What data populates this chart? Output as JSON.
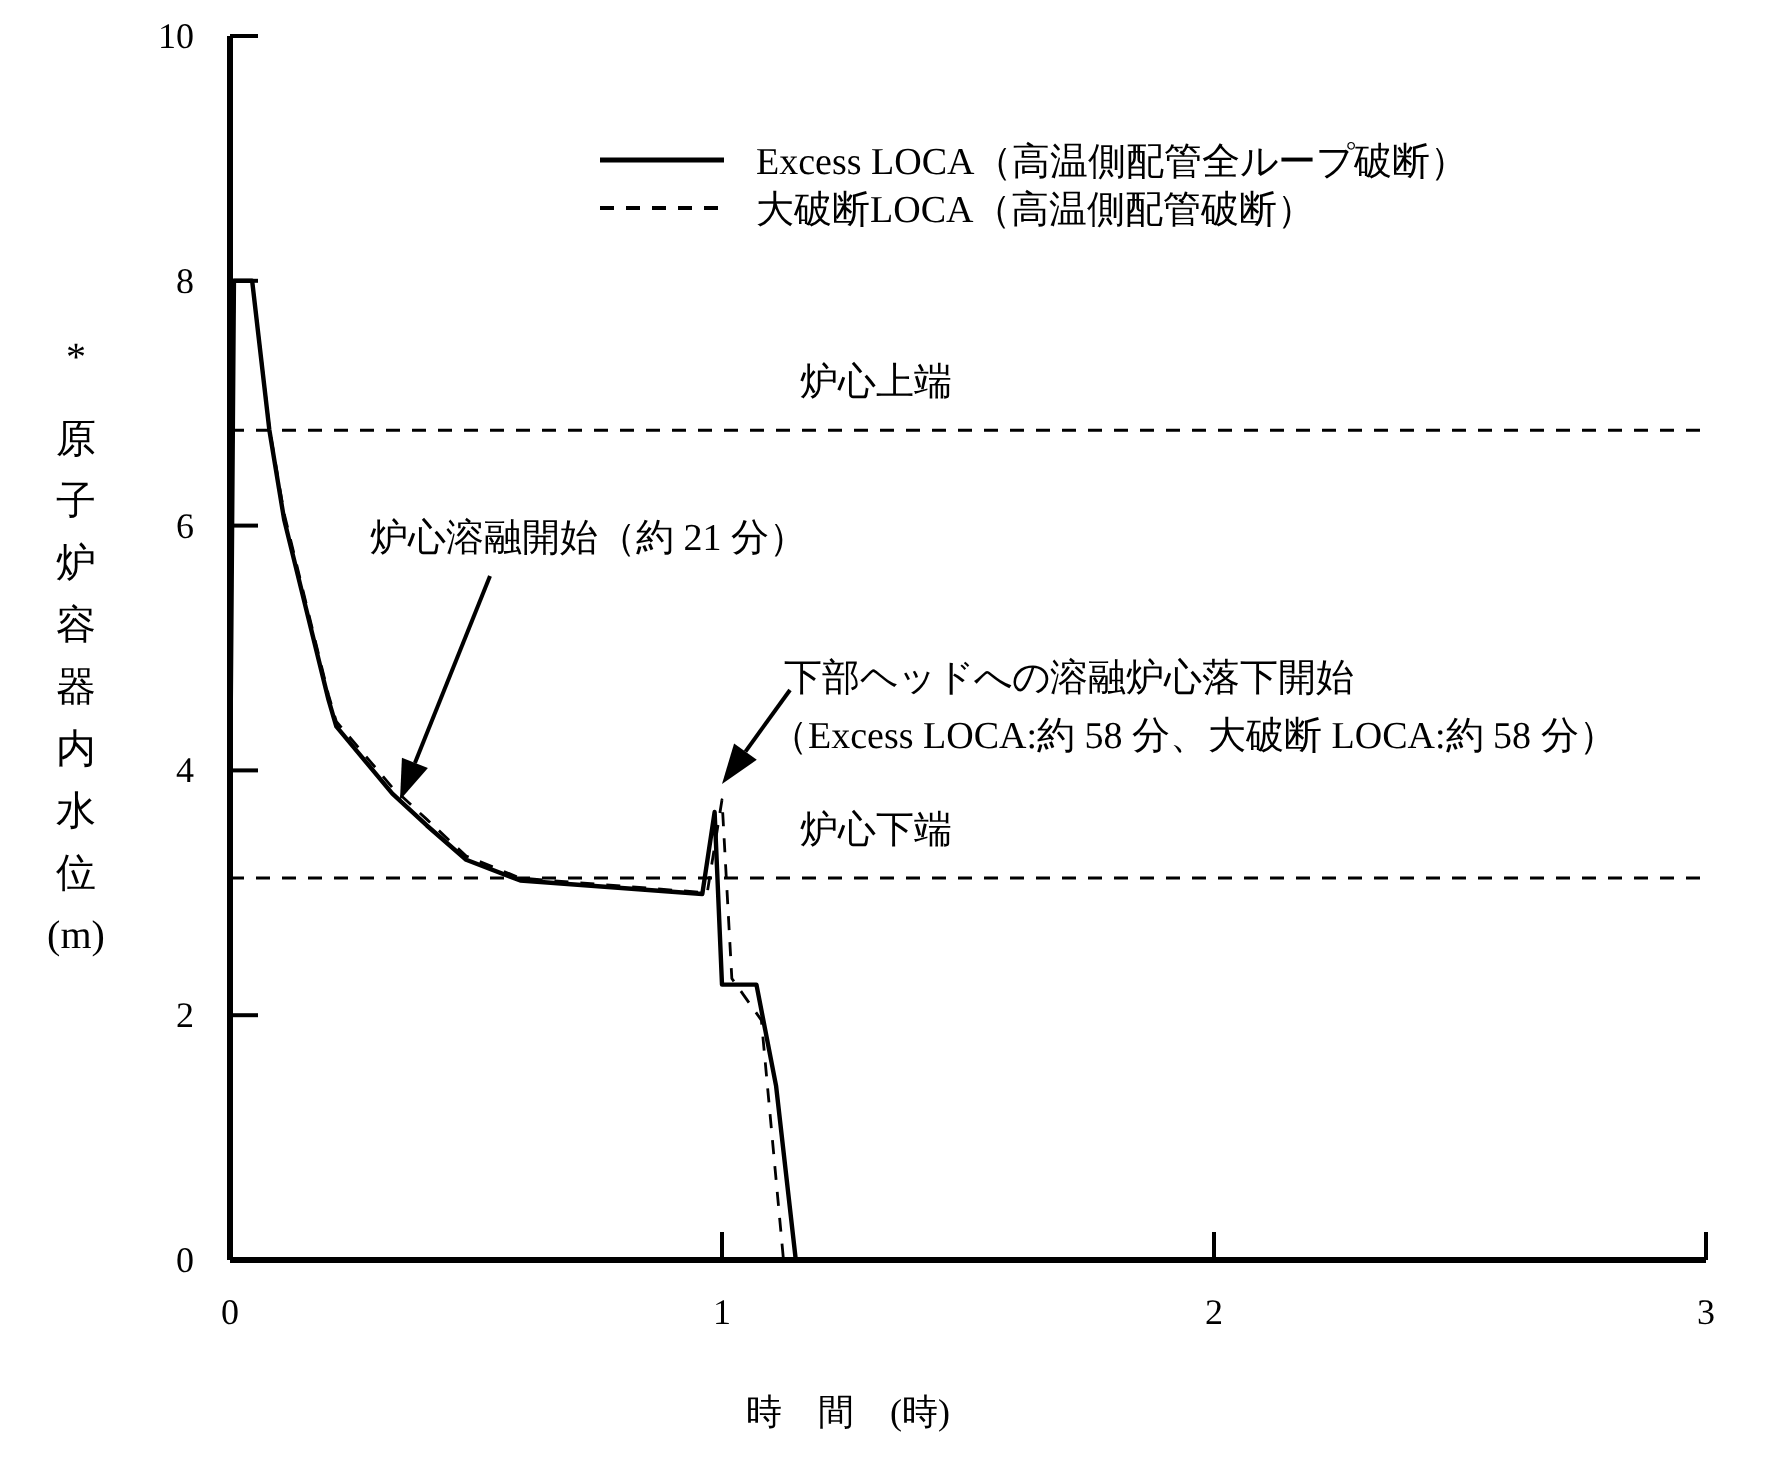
{
  "chart_data": {
    "type": "line",
    "xlabel": "時　間　(時)",
    "ylabel": "*原子炉容器内水位(m)",
    "xlim": [
      0,
      3
    ],
    "ylim": [
      0,
      10
    ],
    "xticks": [
      0,
      1,
      2,
      3
    ],
    "yticks": [
      0,
      2,
      4,
      6,
      8,
      10
    ],
    "grid": false,
    "legend": "top right",
    "series": [
      {
        "name": "Excess LOCA（高温側配管全ループ破断）",
        "color": "#000000",
        "line_style": "solid",
        "x": [
          0,
          0.008,
          0.045,
          0.08,
          0.11,
          0.2,
          0.216,
          0.33,
          0.4,
          0.48,
          0.59,
          0.96,
          0.985,
          1.0,
          1.07,
          1.11,
          1.15
        ],
        "values": [
          3.7,
          8,
          8,
          6.78,
          6.05,
          4.58,
          4.36,
          3.81,
          3.55,
          3.27,
          3.1,
          2.99,
          3.66,
          2.25,
          2.25,
          1.42,
          0
        ]
      },
      {
        "name": "大破断LOCA（高温側配管破断）",
        "color": "#000000",
        "line_style": "dashed",
        "x": [
          0,
          0.008,
          0.045,
          0.08,
          0.11,
          0.2,
          0.216,
          0.33,
          0.4,
          0.48,
          0.59,
          0.97,
          1.0,
          1.02,
          1.08,
          1.125
        ],
        "values": [
          3.7,
          8,
          8,
          6.8,
          6.1,
          4.62,
          4.4,
          3.86,
          3.6,
          3.3,
          3.12,
          3.0,
          3.76,
          2.3,
          1.96,
          0
        ]
      }
    ],
    "ref_lines": [
      {
        "axis": "y",
        "value": 6.78,
        "label": "炉心上端",
        "line_style": "dashed"
      },
      {
        "axis": "y",
        "value": 3.12,
        "label": "炉心下端",
        "line_style": "dashed"
      }
    ],
    "annotations": [
      "炉心溶融開始（約 21 分）",
      "下部ヘッドへの溶融炉心落下開始",
      "（Excess LOCA:約 58 分、大破断 LOCA:約 58 分）"
    ]
  }
}
